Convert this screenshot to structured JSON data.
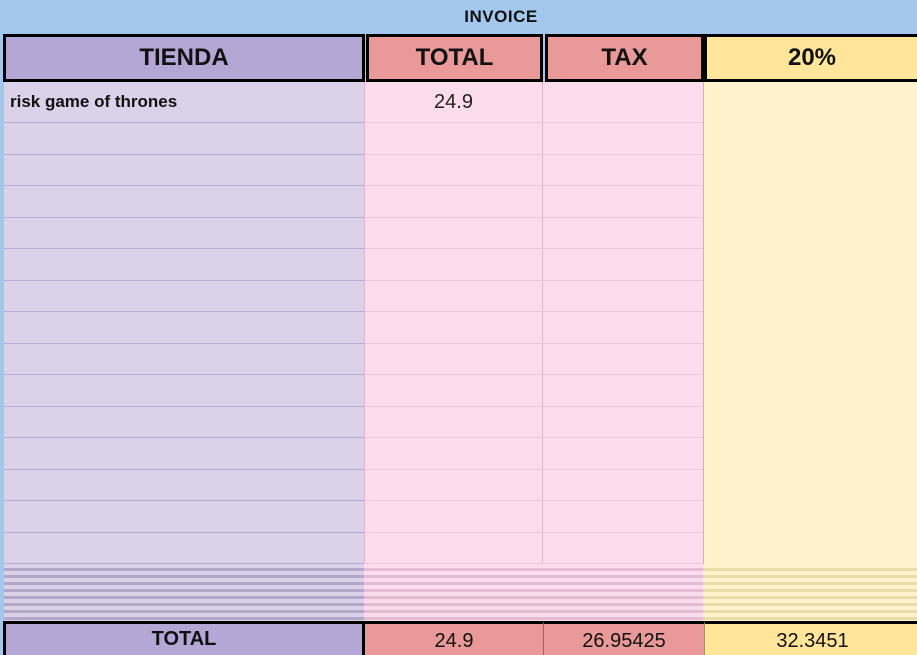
{
  "title": "INVOICE",
  "table": {
    "headers": [
      {
        "label": "TIENDA"
      },
      {
        "label": "TOTAL"
      },
      {
        "label": "TAX"
      },
      {
        "label": "20%"
      }
    ],
    "rows": [
      {
        "tienda": "risk game of thrones",
        "total": "24.9",
        "tax": "",
        "pct": ""
      },
      {
        "tienda": "",
        "total": "",
        "tax": "",
        "pct": ""
      },
      {
        "tienda": "",
        "total": "",
        "tax": "",
        "pct": ""
      },
      {
        "tienda": "",
        "total": "",
        "tax": "",
        "pct": ""
      },
      {
        "tienda": "",
        "total": "",
        "tax": "",
        "pct": ""
      },
      {
        "tienda": "",
        "total": "",
        "tax": "",
        "pct": ""
      },
      {
        "tienda": "",
        "total": "",
        "tax": "",
        "pct": ""
      },
      {
        "tienda": "",
        "total": "",
        "tax": "",
        "pct": ""
      },
      {
        "tienda": "",
        "total": "",
        "tax": "",
        "pct": ""
      },
      {
        "tienda": "",
        "total": "",
        "tax": "",
        "pct": ""
      },
      {
        "tienda": "",
        "total": "",
        "tax": "",
        "pct": ""
      },
      {
        "tienda": "",
        "total": "",
        "tax": "",
        "pct": ""
      },
      {
        "tienda": "",
        "total": "",
        "tax": "",
        "pct": ""
      },
      {
        "tienda": "",
        "total": "",
        "tax": "",
        "pct": ""
      },
      {
        "tienda": "",
        "total": "",
        "tax": "",
        "pct": ""
      }
    ],
    "footer": {
      "label": "TOTAL",
      "total": "24.9",
      "tax": "26.95425",
      "pct": "32.3451"
    }
  },
  "colors": {
    "background": "#a3c7ed",
    "header_tienda": "#b4a7d6",
    "header_total": "#ea9999",
    "header_pct": "#ffe599",
    "body_tienda": "#d9d2e9",
    "body_total": "#fadcec",
    "body_pct": "#fff2cc"
  }
}
